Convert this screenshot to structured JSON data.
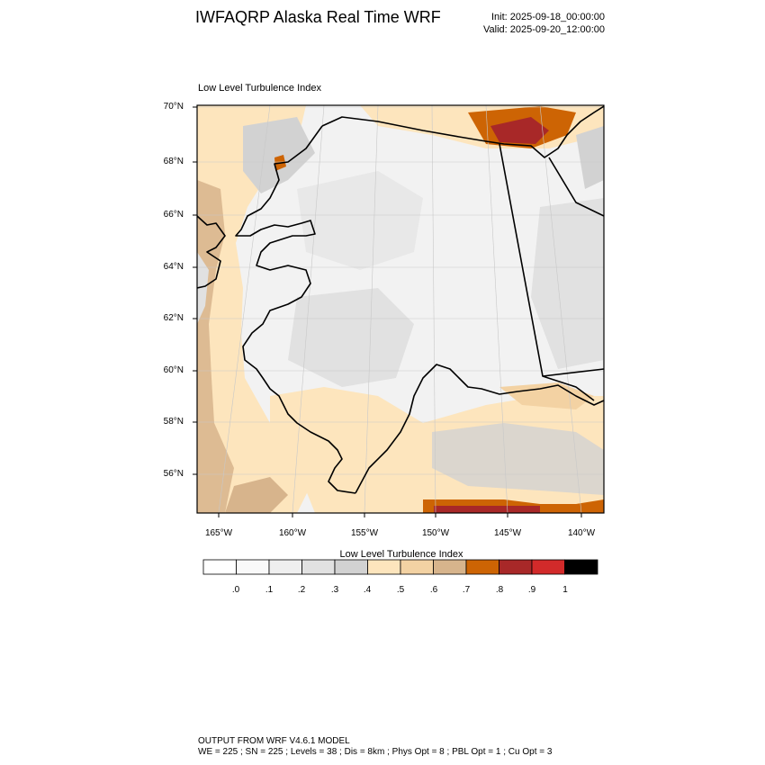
{
  "header": {
    "title": "IWFAQRP Alaska Real Time WRF",
    "init": "Init: 2025-09-18_00:00:00",
    "valid": "Valid: 2025-09-20_12:00:00"
  },
  "map": {
    "field_title": "Low Level Turbulence Index",
    "lat_labels": [
      "70°N",
      "68°N",
      "66°N",
      "64°N",
      "62°N",
      "60°N",
      "58°N",
      "56°N"
    ],
    "lon_labels": [
      "165°W",
      "160°W",
      "155°W",
      "150°W",
      "145°W",
      "140°W"
    ]
  },
  "colorbar": {
    "title": "Low Level Turbulence Index",
    "colors": [
      "#ffffff",
      "#f9f9f9",
      "#efefef",
      "#e1e1e1",
      "#d2d2d2",
      "#fde5bd",
      "#f3d2a3",
      "#d7b48c",
      "#cd6404",
      "#a82828",
      "#d22a2a",
      "#000000"
    ],
    "labels": [
      ".0",
      ".1",
      ".2",
      ".3",
      ".4",
      ".5",
      ".6",
      ".7",
      ".8",
      ".9",
      "1"
    ]
  },
  "footer": {
    "line1": "OUTPUT FROM WRF V4.6.1 MODEL",
    "line2": "WE = 225 ; SN = 225 ; Levels = 38 ; Dis = 8km ; Phys Opt = 8 ; PBL Opt = 1 ; Cu Opt = 3"
  }
}
